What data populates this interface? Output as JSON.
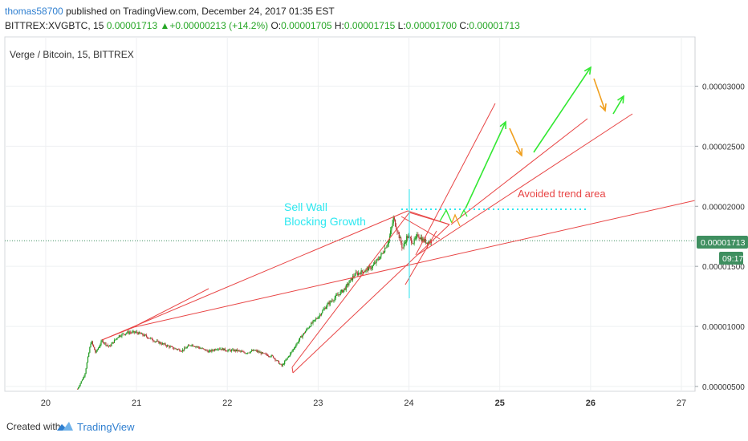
{
  "header": {
    "author": "thomas58700",
    "published_text": " published on TradingView.com, December 24, 2017 01:35 EST",
    "symbol": "BITTREX:XVGBTC, 15",
    "last": "0.00001713",
    "up_arrow": "▲",
    "change": "+0.00000213 (+14.2%)",
    "o_label": "O:",
    "o_value": "0.00001705",
    "h_label": "H:",
    "h_value": "0.00001715",
    "l_label": "L:",
    "l_value": "0.00001700",
    "c_label": "C:",
    "c_value": "0.00001713"
  },
  "chart_data": {
    "type": "candlestick",
    "title": "Verge / Bitcoin, 15, BITTREX",
    "x_ticks": [
      "20",
      "21",
      "22",
      "23",
      "24",
      "25",
      "26",
      "27"
    ],
    "x_ticks_bold": [
      "25",
      "26"
    ],
    "y_ticks": [
      "0.00003000",
      "0.00002500",
      "0.00002000",
      "0.00001500",
      "0.00001000",
      "0.00000500"
    ],
    "xlim": [
      19.55,
      27.15
    ],
    "ylim": [
      4.6e-06,
      3.41e-05
    ],
    "last_price_label": "0.00001713",
    "last_price": 1.713e-05,
    "countdown_label": "09:17",
    "price_path": [
      [
        20.35,
        4.8e-06
      ],
      [
        20.43,
        6e-06
      ],
      [
        20.5,
        8.8e-06
      ],
      [
        20.55,
        7.8e-06
      ],
      [
        20.62,
        8.8e-06
      ],
      [
        20.7,
        8.3e-06
      ],
      [
        20.8,
        9.2e-06
      ],
      [
        20.9,
        9.5e-06
      ],
      [
        21.0,
        9.5e-06
      ],
      [
        21.1,
        9.2e-06
      ],
      [
        21.2,
        8.8e-06
      ],
      [
        21.3,
        8.5e-06
      ],
      [
        21.4,
        8.2e-06
      ],
      [
        21.5,
        8e-06
      ],
      [
        21.6,
        8.5e-06
      ],
      [
        21.7,
        8.2e-06
      ],
      [
        21.8,
        7.9e-06
      ],
      [
        21.9,
        8.2e-06
      ],
      [
        22.0,
        8e-06
      ],
      [
        22.1,
        8e-06
      ],
      [
        22.2,
        7.8e-06
      ],
      [
        22.3,
        8e-06
      ],
      [
        22.4,
        7.7e-06
      ],
      [
        22.5,
        7.5e-06
      ],
      [
        22.6,
        6.7e-06
      ],
      [
        22.7,
        7.8e-06
      ],
      [
        22.8,
        9e-06
      ],
      [
        22.9,
        1e-05
      ],
      [
        23.0,
        1.08e-05
      ],
      [
        23.1,
        1.18e-05
      ],
      [
        23.2,
        1.25e-05
      ],
      [
        23.3,
        1.32e-05
      ],
      [
        23.4,
        1.43e-05
      ],
      [
        23.5,
        1.46e-05
      ],
      [
        23.6,
        1.5e-05
      ],
      [
        23.7,
        1.6e-05
      ],
      [
        23.78,
        1.72e-05
      ],
      [
        23.83,
        1.9e-05
      ],
      [
        23.88,
        1.78e-05
      ],
      [
        23.93,
        1.65e-05
      ],
      [
        23.98,
        1.75e-05
      ],
      [
        24.05,
        1.7e-05
      ],
      [
        24.1,
        1.76e-05
      ],
      [
        24.15,
        1.72e-05
      ],
      [
        24.2,
        1.7e-05
      ],
      [
        24.25,
        1.71e-05
      ]
    ]
  },
  "annotations": {
    "sell_wall_line1": "Sell Wall",
    "sell_wall_line2": "Blocking Growth",
    "avoided_trend": "Avoided trend area"
  },
  "colors": {
    "trend_red": "#e84545",
    "cyan": "#2ee8f0",
    "green_arrow": "#33e833",
    "orange_arrow": "#f0a020",
    "candle_up": "#1e9a1e",
    "candle_down": "#b83a3a",
    "price_tag": "#3f8f60",
    "grid": "#eef0f2",
    "author": "#2f7fd0",
    "tv_blue": "#2f7fd0"
  },
  "footer": {
    "created_with": "Created with",
    "brand": "TradingView"
  }
}
